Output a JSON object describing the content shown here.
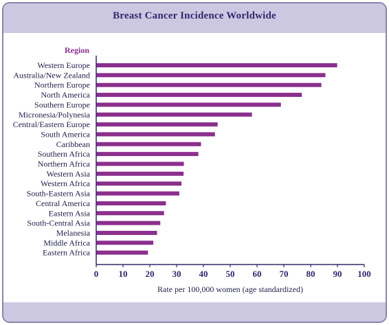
{
  "chart_data": {
    "type": "bar",
    "orientation": "horizontal",
    "title": "Breast Cancer Incidence Worldwide",
    "category_axis_label": "Region",
    "value_axis_label": "Rate per 100,000 women (age standardized)",
    "categories": [
      "Western Europe",
      "Australia/New Zealand",
      "Northern Europe",
      "North America",
      "Southern Europe",
      "Micronesia/Polynesia",
      "Central/Eastern Europe",
      "South America",
      "Caribbean",
      "Southern Africa",
      "Northern Africa",
      "Western Asia",
      "Western Africa",
      "South-Eastern Asia",
      "Central America",
      "Eastern Asia",
      "South-Central Asia",
      "Melanesia",
      "Middle Africa",
      "Eastern Africa"
    ],
    "values": [
      89.9,
      85.5,
      84.0,
      76.7,
      68.9,
      58.1,
      45.3,
      44.3,
      39.1,
      38.1,
      32.7,
      32.6,
      31.8,
      31.0,
      26.0,
      25.3,
      23.9,
      22.7,
      21.3,
      19.3
    ],
    "xlim": [
      0,
      100
    ],
    "xticks": [
      0,
      10,
      20,
      30,
      40,
      50,
      60,
      70,
      80,
      90,
      100
    ],
    "grid": false,
    "legend": "none",
    "colors": {
      "bar": "#8b2f8d",
      "region_label": "#8b2f8d",
      "title": "#2e2a6c",
      "axis": "#2e2a6c",
      "text": "#1f1f4a",
      "band": "#cdc8e2",
      "border": "#8a84a8"
    }
  }
}
